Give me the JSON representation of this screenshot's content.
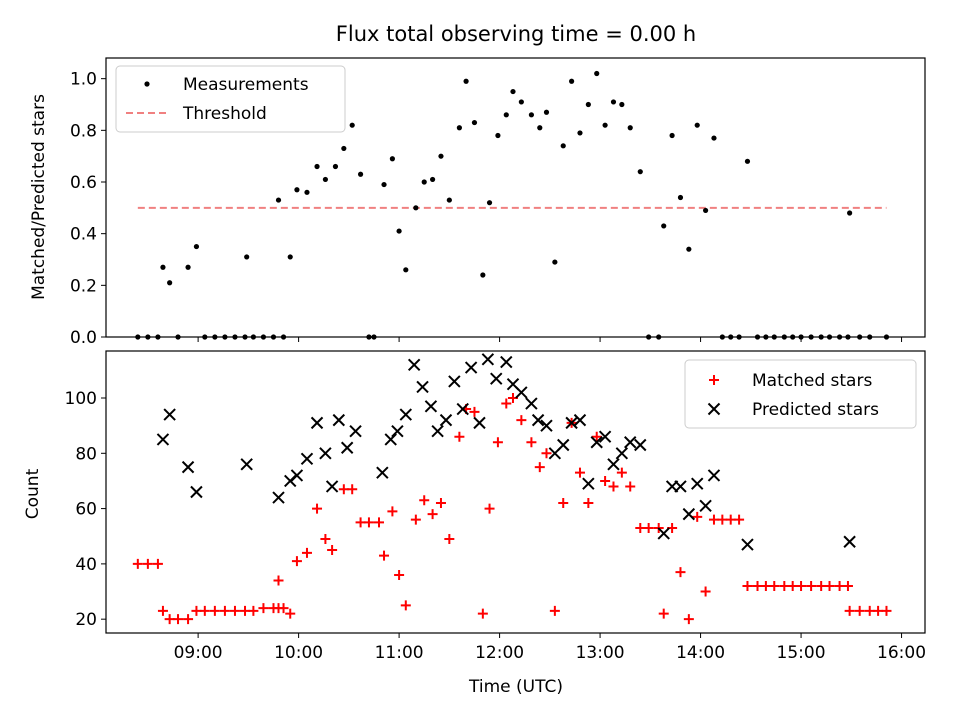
{
  "chart_data": [
    {
      "type": "scatter",
      "title": "Flux total observing time = 0.00 h",
      "ylabel": "Matched/Predicted stars",
      "xlabel": "",
      "ylim": [
        0,
        1.08
      ],
      "yticks": [
        "0.0",
        "0.2",
        "0.4",
        "0.6",
        "0.8",
        "1.0"
      ],
      "legend": {
        "placement": "upper-left",
        "entries": [
          "Measurements",
          "Threshold"
        ]
      },
      "threshold": {
        "name": "Threshold",
        "value": 0.5,
        "x_range": [
          "08:24",
          "15:51"
        ],
        "color": "#f08080"
      },
      "series": [
        {
          "name": "Measurements",
          "color": "#000000",
          "marker": "dot",
          "points": [
            [
              "08:24",
              0
            ],
            [
              "08:30",
              0
            ],
            [
              "08:36",
              0
            ],
            [
              "08:39",
              0.27
            ],
            [
              "08:43",
              0.21
            ],
            [
              "08:48",
              0
            ],
            [
              "08:54",
              0.27
            ],
            [
              "08:59",
              0.35
            ],
            [
              "09:04",
              0
            ],
            [
              "09:10",
              0
            ],
            [
              "09:16",
              0
            ],
            [
              "09:22",
              0
            ],
            [
              "09:28",
              0
            ],
            [
              "09:33",
              0
            ],
            [
              "09:29",
              0.31
            ],
            [
              "09:39",
              0
            ],
            [
              "09:45",
              0
            ],
            [
              "09:51",
              0
            ],
            [
              "09:48",
              0.53
            ],
            [
              "09:55",
              0.31
            ],
            [
              "09:59",
              0.57
            ],
            [
              "10:05",
              0.56
            ],
            [
              "10:11",
              0.66
            ],
            [
              "10:16",
              0.61
            ],
            [
              "10:22",
              0.66
            ],
            [
              "10:27",
              0.73
            ],
            [
              "10:32",
              0.82
            ],
            [
              "10:37",
              0.63
            ],
            [
              "10:42",
              0
            ],
            [
              "10:45",
              0
            ],
            [
              "10:51",
              0.59
            ],
            [
              "10:56",
              0.69
            ],
            [
              "11:00",
              0.41
            ],
            [
              "11:04",
              0.26
            ],
            [
              "11:10",
              0.5
            ],
            [
              "11:15",
              0.6
            ],
            [
              "11:20",
              0.61
            ],
            [
              "11:25",
              0.7
            ],
            [
              "11:30",
              0.53
            ],
            [
              "11:36",
              0.81
            ],
            [
              "11:40",
              0.99
            ],
            [
              "11:45",
              0.83
            ],
            [
              "11:50",
              0.24
            ],
            [
              "11:54",
              0.52
            ],
            [
              "11:59",
              0.78
            ],
            [
              "12:04",
              0.86
            ],
            [
              "12:08",
              0.95
            ],
            [
              "12:13",
              0.91
            ],
            [
              "12:19",
              0.86
            ],
            [
              "12:24",
              0.81
            ],
            [
              "12:28",
              0.87
            ],
            [
              "12:33",
              0.29
            ],
            [
              "12:38",
              0.74
            ],
            [
              "12:43",
              0.99
            ],
            [
              "12:48",
              0.79
            ],
            [
              "12:53",
              0.9
            ],
            [
              "12:58",
              1.02
            ],
            [
              "13:03",
              0.82
            ],
            [
              "13:08",
              0.91
            ],
            [
              "13:13",
              0.9
            ],
            [
              "13:18",
              0.81
            ],
            [
              "13:24",
              0.64
            ],
            [
              "13:29",
              0
            ],
            [
              "13:35",
              0
            ],
            [
              "13:38",
              0.43
            ],
            [
              "13:43",
              0.78
            ],
            [
              "13:48",
              0.54
            ],
            [
              "13:53",
              0.34
            ],
            [
              "13:58",
              0.82
            ],
            [
              "14:03",
              0.49
            ],
            [
              "14:08",
              0.77
            ],
            [
              "14:13",
              0
            ],
            [
              "14:18",
              0
            ],
            [
              "14:23",
              0
            ],
            [
              "14:28",
              0.68
            ],
            [
              "14:34",
              0
            ],
            [
              "14:39",
              0
            ],
            [
              "14:44",
              0
            ],
            [
              "14:50",
              0
            ],
            [
              "14:55",
              0
            ],
            [
              "15:00",
              0
            ],
            [
              "15:06",
              0
            ],
            [
              "15:12",
              0
            ],
            [
              "15:17",
              0
            ],
            [
              "15:23",
              0
            ],
            [
              "15:28",
              0
            ],
            [
              "15:29",
              0.48
            ],
            [
              "15:35",
              0
            ],
            [
              "15:41",
              0
            ],
            [
              "15:51",
              0
            ]
          ]
        }
      ]
    },
    {
      "type": "scatter",
      "xlabel": "Time (UTC)",
      "ylabel": "Count",
      "ylim": [
        15,
        117
      ],
      "yticks": [
        "20",
        "40",
        "60",
        "80",
        "100"
      ],
      "xticks": [
        "09:00",
        "10:00",
        "11:00",
        "12:00",
        "13:00",
        "14:00",
        "15:00",
        "16:00"
      ],
      "xlim": [
        "08:05",
        "16:14"
      ],
      "legend": {
        "placement": "upper-right",
        "entries": [
          "Matched stars",
          "Predicted stars"
        ]
      },
      "series": [
        {
          "name": "Matched stars",
          "color": "#ff0000",
          "marker": "plus",
          "points": [
            [
              "08:24",
              40
            ],
            [
              "08:30",
              40
            ],
            [
              "08:36",
              40
            ],
            [
              "08:39",
              23
            ],
            [
              "08:43",
              20
            ],
            [
              "08:48",
              20
            ],
            [
              "08:54",
              20
            ],
            [
              "08:59",
              23
            ],
            [
              "09:04",
              23
            ],
            [
              "09:10",
              23
            ],
            [
              "09:16",
              23
            ],
            [
              "09:22",
              23
            ],
            [
              "09:28",
              23
            ],
            [
              "09:33",
              23
            ],
            [
              "09:39",
              24
            ],
            [
              "09:45",
              24
            ],
            [
              "09:51",
              24
            ],
            [
              "09:48",
              24
            ],
            [
              "09:48",
              34
            ],
            [
              "09:55",
              22
            ],
            [
              "09:59",
              41
            ],
            [
              "10:05",
              44
            ],
            [
              "10:11",
              60
            ],
            [
              "10:16",
              49
            ],
            [
              "10:20",
              45
            ],
            [
              "10:27",
              67
            ],
            [
              "10:32",
              67
            ],
            [
              "10:37",
              55
            ],
            [
              "10:42",
              55
            ],
            [
              "10:48",
              55
            ],
            [
              "10:51",
              43
            ],
            [
              "10:56",
              59
            ],
            [
              "11:00",
              36
            ],
            [
              "11:04",
              25
            ],
            [
              "11:10",
              56
            ],
            [
              "11:15",
              63
            ],
            [
              "11:20",
              58
            ],
            [
              "11:25",
              62
            ],
            [
              "11:30",
              49
            ],
            [
              "11:36",
              86
            ],
            [
              "11:40",
              96
            ],
            [
              "11:45",
              95
            ],
            [
              "11:50",
              22
            ],
            [
              "11:54",
              60
            ],
            [
              "11:59",
              84
            ],
            [
              "12:04",
              98
            ],
            [
              "12:08",
              100
            ],
            [
              "12:13",
              92
            ],
            [
              "12:19",
              84
            ],
            [
              "12:24",
              75
            ],
            [
              "12:28",
              80
            ],
            [
              "12:33",
              23
            ],
            [
              "12:38",
              62
            ],
            [
              "12:43",
              91
            ],
            [
              "12:48",
              73
            ],
            [
              "12:53",
              62
            ],
            [
              "12:58",
              86
            ],
            [
              "13:03",
              70
            ],
            [
              "13:08",
              68
            ],
            [
              "13:13",
              73
            ],
            [
              "13:18",
              68
            ],
            [
              "13:24",
              53
            ],
            [
              "13:29",
              53
            ],
            [
              "13:35",
              53
            ],
            [
              "13:38",
              22
            ],
            [
              "13:43",
              53
            ],
            [
              "13:48",
              37
            ],
            [
              "13:53",
              20
            ],
            [
              "13:58",
              57
            ],
            [
              "14:03",
              30
            ],
            [
              "14:08",
              56
            ],
            [
              "14:13",
              56
            ],
            [
              "14:18",
              56
            ],
            [
              "14:23",
              56
            ],
            [
              "14:28",
              32
            ],
            [
              "14:34",
              32
            ],
            [
              "14:39",
              32
            ],
            [
              "14:44",
              32
            ],
            [
              "14:50",
              32
            ],
            [
              "14:55",
              32
            ],
            [
              "15:00",
              32
            ],
            [
              "15:06",
              32
            ],
            [
              "15:12",
              32
            ],
            [
              "15:17",
              32
            ],
            [
              "15:23",
              32
            ],
            [
              "15:28",
              32
            ],
            [
              "15:35",
              23
            ],
            [
              "15:41",
              23
            ],
            [
              "15:46",
              23
            ],
            [
              "15:51",
              23
            ],
            [
              "15:29",
              23
            ]
          ]
        },
        {
          "name": "Predicted stars",
          "color": "#000000",
          "marker": "x",
          "points": [
            [
              "08:39",
              85
            ],
            [
              "08:43",
              94
            ],
            [
              "08:54",
              75
            ],
            [
              "08:59",
              66
            ],
            [
              "09:29",
              76
            ],
            [
              "09:48",
              64
            ],
            [
              "09:55",
              70
            ],
            [
              "09:59",
              72
            ],
            [
              "10:05",
              78
            ],
            [
              "10:11",
              91
            ],
            [
              "10:16",
              80
            ],
            [
              "10:20",
              68
            ],
            [
              "10:24",
              92
            ],
            [
              "10:29",
              82
            ],
            [
              "10:34",
              88
            ],
            [
              "10:50",
              73
            ],
            [
              "10:55",
              85
            ],
            [
              "10:59",
              88
            ],
            [
              "11:04",
              94
            ],
            [
              "11:09",
              112
            ],
            [
              "11:14",
              104
            ],
            [
              "11:19",
              97
            ],
            [
              "11:23",
              88
            ],
            [
              "11:28",
              92
            ],
            [
              "11:33",
              106
            ],
            [
              "11:38",
              96
            ],
            [
              "11:43",
              111
            ],
            [
              "11:48",
              91
            ],
            [
              "11:53",
              114
            ],
            [
              "11:58",
              107
            ],
            [
              "12:04",
              113
            ],
            [
              "12:08",
              105
            ],
            [
              "12:13",
              102
            ],
            [
              "12:19",
              98
            ],
            [
              "12:23",
              92
            ],
            [
              "12:28",
              90
            ],
            [
              "12:33",
              80
            ],
            [
              "12:38",
              83
            ],
            [
              "12:43",
              91
            ],
            [
              "12:48",
              92
            ],
            [
              "12:53",
              69
            ],
            [
              "12:58",
              84
            ],
            [
              "13:03",
              86
            ],
            [
              "13:08",
              76
            ],
            [
              "13:13",
              80
            ],
            [
              "13:18",
              84
            ],
            [
              "13:24",
              83
            ],
            [
              "13:38",
              51
            ],
            [
              "13:43",
              68
            ],
            [
              "13:48",
              68
            ],
            [
              "13:53",
              58
            ],
            [
              "13:58",
              69
            ],
            [
              "14:03",
              61
            ],
            [
              "14:08",
              72
            ],
            [
              "14:28",
              47
            ],
            [
              "15:29",
              48
            ]
          ]
        }
      ]
    }
  ]
}
